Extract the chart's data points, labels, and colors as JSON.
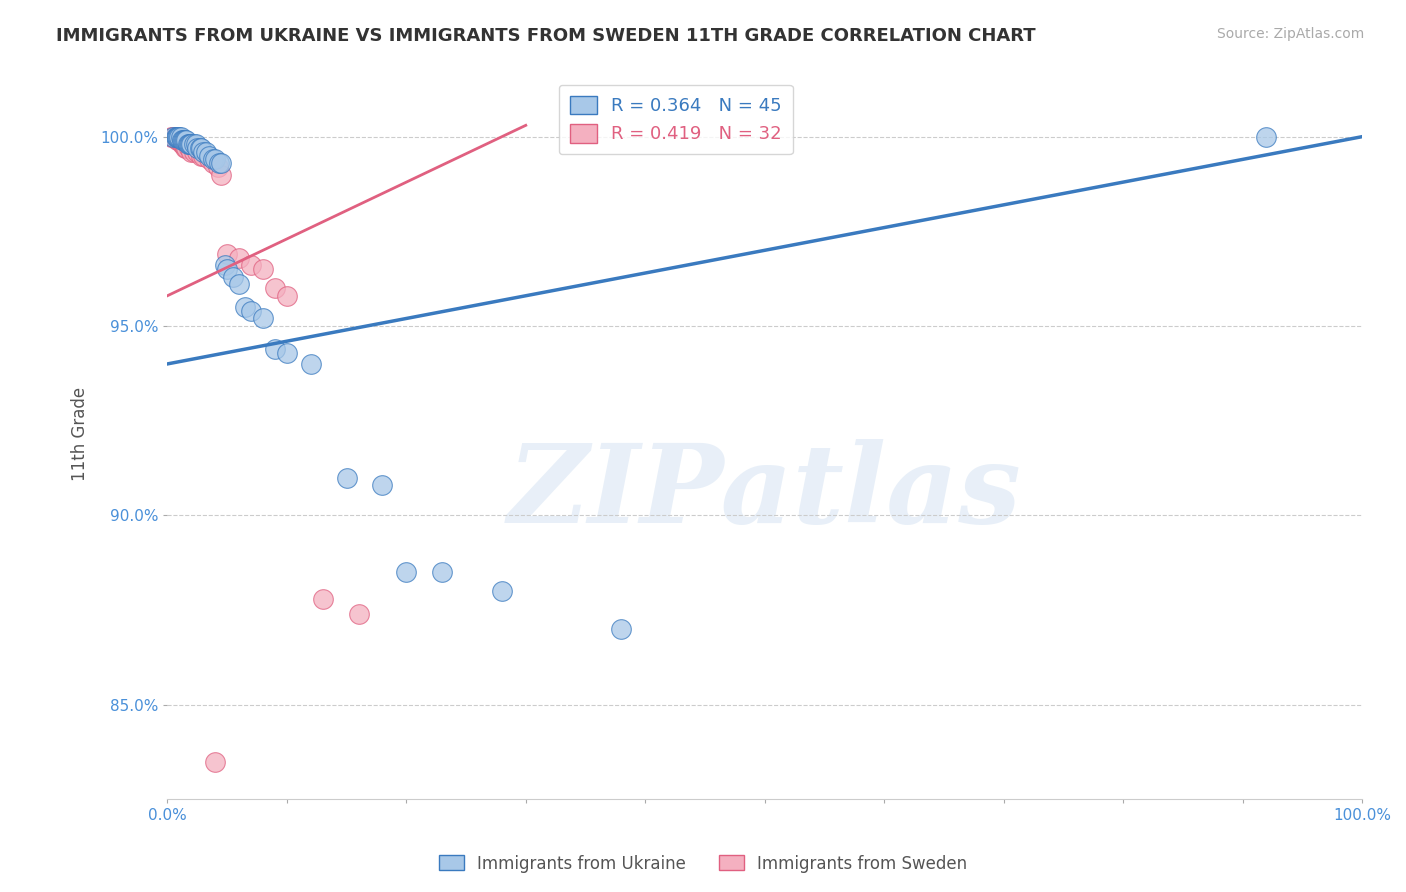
{
  "title": "IMMIGRANTS FROM UKRAINE VS IMMIGRANTS FROM SWEDEN 11TH GRADE CORRELATION CHART",
  "source": "Source: ZipAtlas.com",
  "ylabel": "11th Grade",
  "watermark": "ZIPatlas",
  "r_ukraine": 0.364,
  "n_ukraine": 45,
  "r_sweden": 0.419,
  "n_sweden": 32,
  "xlim": [
    0.0,
    1.0
  ],
  "ylim": [
    0.825,
    1.018
  ],
  "yticks": [
    0.85,
    0.9,
    0.95,
    1.0
  ],
  "xticks": [
    0.0,
    0.1,
    0.2,
    0.3,
    0.4,
    0.5,
    0.6,
    0.7,
    0.8,
    0.9,
    1.0
  ],
  "ukraine_color": "#a8c8e8",
  "sweden_color": "#f4b0c0",
  "ukraine_line_color": "#3a7abf",
  "sweden_line_color": "#e06080",
  "background_color": "#ffffff",
  "grid_color": "#cccccc",
  "title_color": "#333333",
  "tick_color": "#4a90d9",
  "ukraine_scatter_x": [
    0.005,
    0.007,
    0.008,
    0.008,
    0.009,
    0.01,
    0.011,
    0.012,
    0.013,
    0.014,
    0.015,
    0.016,
    0.017,
    0.018,
    0.019,
    0.02,
    0.022,
    0.024,
    0.025,
    0.027,
    0.028,
    0.03,
    0.032,
    0.035,
    0.038,
    0.04,
    0.043,
    0.045,
    0.048,
    0.05,
    0.055,
    0.06,
    0.065,
    0.07,
    0.08,
    0.09,
    0.1,
    0.12,
    0.15,
    0.18,
    0.2,
    0.23,
    0.28,
    0.38,
    0.92
  ],
  "ukraine_scatter_y": [
    1.0,
    1.0,
    1.0,
    1.0,
    1.0,
    1.0,
    1.0,
    0.999,
    0.999,
    0.999,
    0.999,
    0.999,
    0.998,
    0.998,
    0.998,
    0.998,
    0.998,
    0.998,
    0.997,
    0.997,
    0.997,
    0.996,
    0.996,
    0.995,
    0.994,
    0.994,
    0.993,
    0.993,
    0.966,
    0.965,
    0.963,
    0.961,
    0.955,
    0.954,
    0.952,
    0.944,
    0.943,
    0.94,
    0.91,
    0.908,
    0.885,
    0.885,
    0.88,
    0.87,
    1.0
  ],
  "sweden_scatter_x": [
    0.003,
    0.005,
    0.006,
    0.007,
    0.008,
    0.009,
    0.01,
    0.011,
    0.012,
    0.013,
    0.014,
    0.015,
    0.016,
    0.018,
    0.02,
    0.022,
    0.025,
    0.028,
    0.03,
    0.035,
    0.038,
    0.042,
    0.045,
    0.05,
    0.06,
    0.07,
    0.08,
    0.09,
    0.1,
    0.13,
    0.16,
    0.04
  ],
  "sweden_scatter_y": [
    1.0,
    1.0,
    1.0,
    1.0,
    0.999,
    0.999,
    0.999,
    0.999,
    0.998,
    0.998,
    0.998,
    0.997,
    0.997,
    0.997,
    0.996,
    0.996,
    0.996,
    0.995,
    0.995,
    0.994,
    0.993,
    0.992,
    0.99,
    0.969,
    0.968,
    0.966,
    0.965,
    0.96,
    0.958,
    0.878,
    0.874,
    0.835
  ],
  "ukraine_line_x": [
    0.0,
    1.0
  ],
  "ukraine_line_y": [
    0.94,
    1.0
  ],
  "sweden_line_x": [
    0.0,
    0.3
  ],
  "sweden_line_y": [
    0.958,
    1.003
  ]
}
